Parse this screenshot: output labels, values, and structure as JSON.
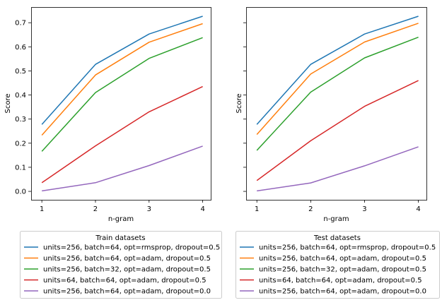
{
  "chart_data": [
    {
      "type": "line",
      "xlabel": "n-gram",
      "ylabel": "Score",
      "x": [
        1,
        2,
        3,
        4
      ],
      "xticks": [
        1,
        2,
        3,
        4
      ],
      "yticks": [
        0.0,
        0.1,
        0.2,
        0.3,
        0.4,
        0.5,
        0.6,
        0.7
      ],
      "xlim": [
        0.8,
        4.15
      ],
      "ylim": [
        -0.035,
        0.765
      ],
      "grid": false,
      "legend_title": "Train datasets",
      "legend_position": "below",
      "series": [
        {
          "name": "units=256, batch=64, opt=rmsprop, dropout=0.5",
          "color": "#1f77b4",
          "values": [
            0.278,
            0.527,
            0.653,
            0.727
          ]
        },
        {
          "name": "units=256, batch=64, opt=adam, dropout=0.5",
          "color": "#ff7f0e",
          "values": [
            0.233,
            0.483,
            0.619,
            0.696
          ]
        },
        {
          "name": "units=256, batch=32, opt=adam, dropout=0.5",
          "color": "#2ca02c",
          "values": [
            0.166,
            0.41,
            0.552,
            0.638
          ]
        },
        {
          "name": "units=64, batch=64, opt=adam, dropout=0.5",
          "color": "#d62728",
          "values": [
            0.036,
            0.189,
            0.33,
            0.435
          ]
        },
        {
          "name": "units=256, batch=64, opt=adam, dropout=0.0",
          "color": "#9467bd",
          "values": [
            0.002,
            0.036,
            0.107,
            0.188
          ]
        }
      ]
    },
    {
      "type": "line",
      "xlabel": "n-gram",
      "ylabel": "Score",
      "x": [
        1,
        2,
        3,
        4
      ],
      "xticks": [
        1,
        2,
        3,
        4
      ],
      "yticks": [
        0.0,
        0.1,
        0.2,
        0.3,
        0.4,
        0.5,
        0.6,
        0.7
      ],
      "xlim": [
        0.8,
        4.15
      ],
      "ylim": [
        -0.035,
        0.765
      ],
      "grid": false,
      "legend_title": "Test datasets",
      "legend_position": "below",
      "series": [
        {
          "name": "units=256, batch=64, opt=rmsprop, dropout=0.5",
          "color": "#1f77b4",
          "values": [
            0.278,
            0.527,
            0.653,
            0.727
          ]
        },
        {
          "name": "units=256, batch=64, opt=adam, dropout=0.5",
          "color": "#ff7f0e",
          "values": [
            0.236,
            0.487,
            0.62,
            0.698
          ]
        },
        {
          "name": "units=256, batch=32, opt=adam, dropout=0.5",
          "color": "#2ca02c",
          "values": [
            0.17,
            0.412,
            0.554,
            0.64
          ]
        },
        {
          "name": "units=64, batch=64, opt=adam, dropout=0.5",
          "color": "#d62728",
          "values": [
            0.045,
            0.21,
            0.353,
            0.46
          ]
        },
        {
          "name": "units=256, batch=64, opt=adam, dropout=0.0",
          "color": "#9467bd",
          "values": [
            0.002,
            0.035,
            0.106,
            0.185
          ]
        }
      ]
    }
  ]
}
